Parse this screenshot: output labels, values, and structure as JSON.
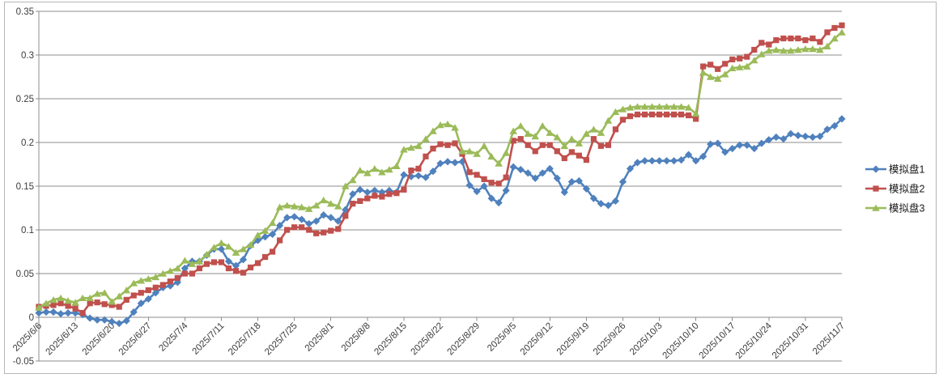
{
  "chart_data": {
    "type": "line",
    "title": "",
    "legend_position": "right",
    "grid": true,
    "gridline_color": "#8c8c8c",
    "axis_color": "#8c8c8c",
    "border_color": "#b7b7b7",
    "x_axis": {
      "n_points": 111,
      "tick_every": 5,
      "tick_labels": [
        "2025/6/6",
        "2025/6/13",
        "2025/6/20",
        "2025/6/27",
        "2025/7/4",
        "2025/7/11",
        "2025/7/18",
        "2025/7/25",
        "2025/8/1",
        "2025/8/8",
        "2025/8/15",
        "2025/8/22",
        "2025/8/29",
        "2025/9/5",
        "2025/9/12",
        "2025/9/19",
        "2025/9/26",
        "2025/10/3",
        "2025/10/10",
        "2025/10/17",
        "2025/10/24",
        "2025/10/31",
        "2025/11/7"
      ]
    },
    "y_axis": {
      "min": -0.05,
      "max": 0.35,
      "step": 0.05,
      "tick_labels": [
        "-0.05",
        "0",
        "0.05",
        "0.1",
        "0.15",
        "0.2",
        "0.25",
        "0.3",
        "0.35"
      ]
    },
    "series": [
      {
        "name": "模拟盘1",
        "color": "#4F81BD",
        "marker": "diamond",
        "values": [
          0.005,
          0.006,
          0.006,
          0.004,
          0.005,
          0.005,
          0.003,
          -0.001,
          -0.003,
          -0.003,
          -0.005,
          -0.007,
          -0.004,
          0.006,
          0.016,
          0.021,
          0.028,
          0.034,
          0.036,
          0.04,
          0.056,
          0.064,
          0.064,
          0.071,
          0.078,
          0.078,
          0.064,
          0.059,
          0.066,
          0.082,
          0.088,
          0.092,
          0.095,
          0.105,
          0.114,
          0.115,
          0.112,
          0.107,
          0.11,
          0.117,
          0.114,
          0.11,
          0.123,
          0.141,
          0.146,
          0.143,
          0.145,
          0.143,
          0.145,
          0.143,
          0.163,
          0.161,
          0.162,
          0.16,
          0.167,
          0.176,
          0.178,
          0.177,
          0.178,
          0.151,
          0.144,
          0.15,
          0.136,
          0.131,
          0.145,
          0.172,
          0.169,
          0.165,
          0.159,
          0.165,
          0.17,
          0.159,
          0.143,
          0.155,
          0.156,
          0.147,
          0.136,
          0.13,
          0.128,
          0.133,
          0.155,
          0.17,
          0.177,
          0.179,
          0.179,
          0.179,
          0.179,
          0.179,
          0.18,
          0.186,
          0.179,
          0.184,
          0.198,
          0.199,
          0.189,
          0.193,
          0.197,
          0.197,
          0.193,
          0.199,
          0.203,
          0.206,
          0.204,
          0.21,
          0.208,
          0.207,
          0.206,
          0.207,
          0.215,
          0.219,
          0.227
        ]
      },
      {
        "name": "模拟盘2",
        "color": "#C0504D",
        "marker": "square",
        "values": [
          0.012,
          0.013,
          0.014,
          0.016,
          0.013,
          0.01,
          0.005,
          0.016,
          0.017,
          0.015,
          0.014,
          0.012,
          0.02,
          0.025,
          0.028,
          0.031,
          0.034,
          0.037,
          0.041,
          0.045,
          0.05,
          0.05,
          0.056,
          0.061,
          0.063,
          0.063,
          0.056,
          0.053,
          0.051,
          0.057,
          0.062,
          0.069,
          0.075,
          0.088,
          0.1,
          0.103,
          0.103,
          0.1,
          0.096,
          0.097,
          0.099,
          0.101,
          0.116,
          0.13,
          0.133,
          0.136,
          0.139,
          0.138,
          0.141,
          0.142,
          0.146,
          0.168,
          0.17,
          0.184,
          0.193,
          0.198,
          0.197,
          0.199,
          0.187,
          0.166,
          0.163,
          0.158,
          0.154,
          0.153,
          0.16,
          0.202,
          0.204,
          0.197,
          0.19,
          0.197,
          0.197,
          0.19,
          0.182,
          0.189,
          0.185,
          0.18,
          0.204,
          0.196,
          0.197,
          0.215,
          0.226,
          0.23,
          0.232,
          0.232,
          0.232,
          0.232,
          0.232,
          0.232,
          0.232,
          0.231,
          0.227,
          0.287,
          0.289,
          0.284,
          0.29,
          0.295,
          0.296,
          0.298,
          0.306,
          0.314,
          0.312,
          0.317,
          0.319,
          0.319,
          0.319,
          0.317,
          0.319,
          0.315,
          0.326,
          0.331,
          0.334
        ]
      },
      {
        "name": "模拟盘3",
        "color": "#9BBB59",
        "marker": "triangle",
        "values": [
          0.011,
          0.016,
          0.02,
          0.022,
          0.019,
          0.017,
          0.022,
          0.022,
          0.027,
          0.028,
          0.018,
          0.024,
          0.031,
          0.039,
          0.042,
          0.044,
          0.046,
          0.05,
          0.053,
          0.056,
          0.065,
          0.061,
          0.064,
          0.072,
          0.08,
          0.085,
          0.081,
          0.074,
          0.078,
          0.083,
          0.094,
          0.099,
          0.108,
          0.126,
          0.128,
          0.127,
          0.126,
          0.124,
          0.128,
          0.134,
          0.13,
          0.127,
          0.15,
          0.157,
          0.168,
          0.165,
          0.17,
          0.166,
          0.169,
          0.173,
          0.192,
          0.194,
          0.196,
          0.204,
          0.213,
          0.22,
          0.221,
          0.217,
          0.19,
          0.19,
          0.187,
          0.196,
          0.184,
          0.176,
          0.188,
          0.213,
          0.219,
          0.21,
          0.207,
          0.219,
          0.211,
          0.206,
          0.196,
          0.204,
          0.199,
          0.21,
          0.215,
          0.211,
          0.225,
          0.235,
          0.238,
          0.24,
          0.241,
          0.241,
          0.241,
          0.241,
          0.241,
          0.241,
          0.241,
          0.24,
          0.233,
          0.28,
          0.275,
          0.273,
          0.278,
          0.285,
          0.286,
          0.287,
          0.294,
          0.301,
          0.305,
          0.306,
          0.305,
          0.305,
          0.306,
          0.307,
          0.307,
          0.306,
          0.31,
          0.319,
          0.326
        ]
      }
    ]
  }
}
